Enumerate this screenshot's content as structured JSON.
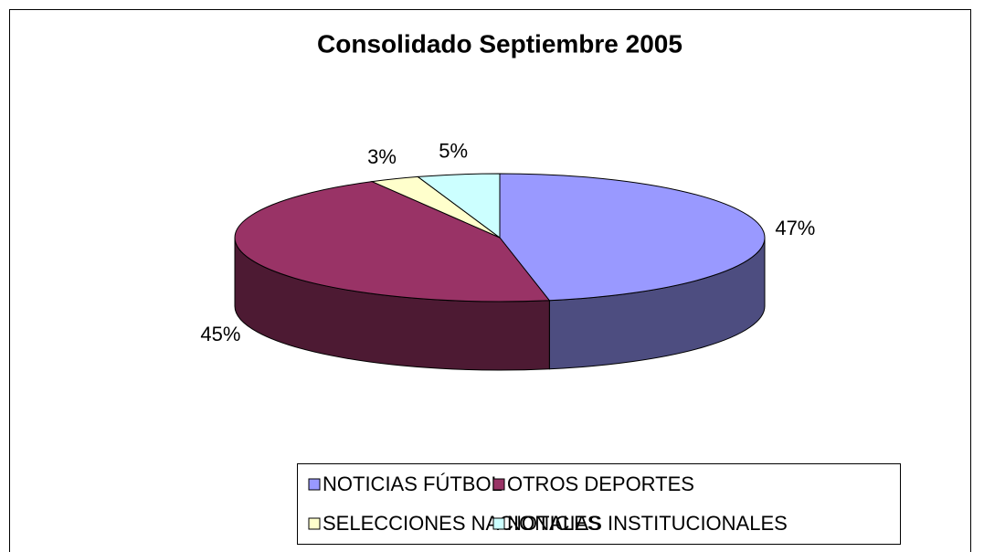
{
  "chart_data": {
    "type": "pie",
    "title": "Consolidado Septiembre 2005",
    "categories": [
      "NOTICIAS FÚTBOL",
      "OTROS DEPORTES",
      "SELECCIONES NACIONALES",
      "NOTICIAS INSTITUCIONALES"
    ],
    "values": [
      47,
      45,
      3,
      5
    ],
    "value_labels": [
      "47%",
      "45%",
      "3%",
      "5%"
    ],
    "colors": [
      "#9999ff",
      "#993366",
      "#ffffcc",
      "#ccffff"
    ],
    "side_colors": [
      "#4d4d80",
      "#4d1a33",
      "#808066",
      "#668080"
    ],
    "legend": "bottom"
  }
}
